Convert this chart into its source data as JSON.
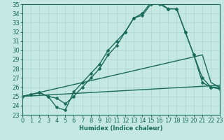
{
  "xlabel": "Humidex (Indice chaleur)",
  "xlim": [
    0,
    23
  ],
  "ylim": [
    23,
    35
  ],
  "xticks": [
    0,
    1,
    2,
    3,
    4,
    5,
    6,
    7,
    8,
    9,
    10,
    11,
    12,
    13,
    14,
    15,
    16,
    17,
    18,
    19,
    20,
    21,
    22,
    23
  ],
  "yticks": [
    23,
    24,
    25,
    26,
    27,
    28,
    29,
    30,
    31,
    32,
    33,
    34,
    35
  ],
  "bg_color": "#c5e8e2",
  "grid_color": "#a8d4ce",
  "line_color": "#1a6b5a",
  "font_size": 6.0,
  "line_width": 1.0,
  "marker_size": 2.5,
  "curve1_x": [
    0,
    1,
    2,
    3,
    4,
    5,
    6,
    7,
    8,
    9,
    10,
    11,
    12,
    13,
    14,
    15,
    16,
    17,
    18,
    19,
    20,
    21,
    22,
    23
  ],
  "curve1_y": [
    25,
    25.2,
    25.4,
    25.0,
    24.8,
    24.2,
    25.0,
    26.0,
    27.0,
    28.0,
    29.5,
    30.5,
    32.0,
    33.5,
    33.8,
    35.0,
    35.0,
    34.5,
    34.5,
    32.0,
    29.5,
    27.0,
    26.0,
    26.0
  ],
  "curve2_x": [
    0,
    1,
    2,
    3,
    4,
    5,
    6,
    7,
    8,
    9,
    10,
    11,
    12,
    13,
    14,
    15,
    16,
    17,
    18,
    19,
    20,
    21,
    22,
    23
  ],
  "curve2_y": [
    25,
    25.2,
    25.4,
    25.0,
    23.8,
    23.5,
    25.5,
    26.5,
    27.5,
    28.5,
    30.0,
    31.0,
    32.0,
    33.5,
    34.0,
    35.2,
    35.2,
    34.5,
    34.5,
    32.0,
    29.5,
    26.5,
    26.0,
    25.8
  ],
  "line3_x": [
    0,
    23
  ],
  "line3_y": [
    25,
    26.2
  ],
  "line4_x": [
    0,
    21,
    22,
    23
  ],
  "line4_y": [
    25,
    29.5,
    26.5,
    26.0
  ]
}
